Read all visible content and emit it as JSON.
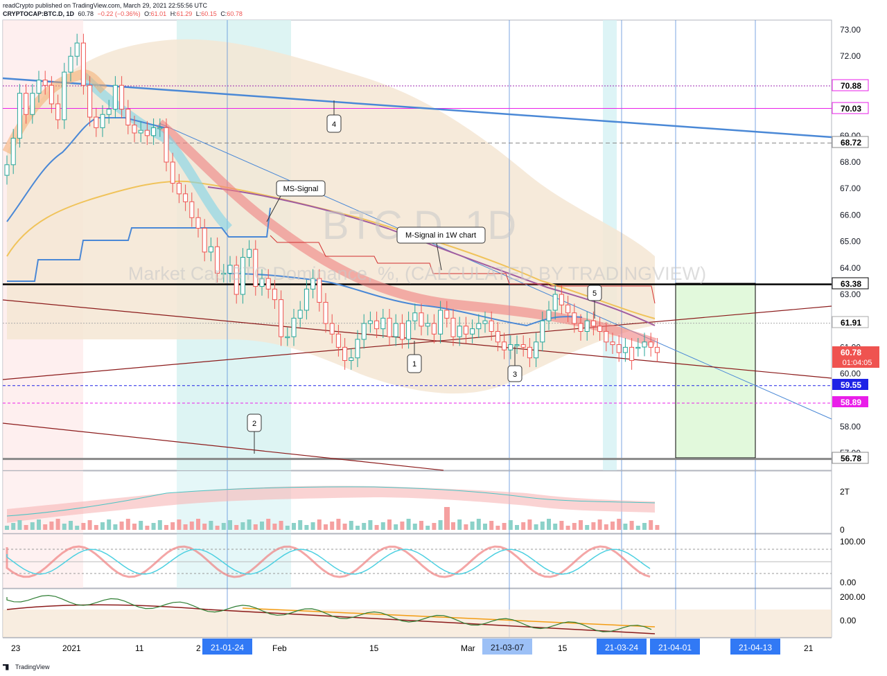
{
  "header": {
    "line1": "readCrypto published on TradingView.com, March 29, 2021 22:55:56 UTC",
    "symbol": "CRYPTOCAP:BTC.D, 1D",
    "last": "60.78",
    "change": "−0.22 (−0.36%)",
    "o": "O:",
    "o_val": "61.01",
    "h": "H:",
    "h_val": "61.29",
    "l": "L:",
    "l_val": "60.15",
    "c": "C:",
    "c_val": "60.78"
  },
  "footer": {
    "brand": "TradingView"
  },
  "watermark": {
    "symbol": "BTC.D, 1D",
    "description": "Market Cap BTC Dominance, %, (CALCULATED BY TRADINGVIEW)"
  },
  "annotations": {
    "ms_signal": "MS-Signal",
    "m_signal": "M-Signal in 1W chart",
    "n1": "1",
    "n2": "2",
    "n3": "3",
    "n4": "4",
    "n5": "5"
  },
  "price_axis": {
    "ticks": [
      "73.00",
      "72.00",
      "71.00",
      "70.00",
      "69.00",
      "68.00",
      "67.00",
      "66.00",
      "65.00",
      "64.00",
      "63.00",
      "62.00",
      "61.00",
      "60.00",
      "59.00",
      "58.00",
      "57.00"
    ],
    "labels": {
      "l7088": "70.88",
      "l7003": "70.03",
      "l6872": "68.72",
      "l6338": "63.38",
      "l6191": "61.91",
      "l6078": "60.78",
      "countdown": "01:04:05",
      "l5955": "59.55",
      "l5889": "58.89",
      "l5678": "56.78"
    }
  },
  "pane_axes": {
    "volume": [
      "2T",
      "0"
    ],
    "stoch": [
      "100.00",
      "0.00"
    ],
    "osc": [
      "200.00",
      "0.00"
    ]
  },
  "time_axis": {
    "ticks": [
      "23",
      "2021",
      "11",
      "2",
      "Feb",
      "15",
      "Mar",
      "15",
      "21"
    ],
    "highlighted": [
      "21-01-24",
      "21-03-07",
      "21-03-24",
      "21-04-01",
      "21-04-13"
    ]
  },
  "colors": {
    "up": "#26a69a",
    "down": "#ef5350",
    "blue_line": "#4a88d6",
    "level_black": "#000000",
    "level_gray": "#888888",
    "channel": "#8b1a1a",
    "green_box": "#e2f9dc",
    "bb_fill": "#f5e6d3",
    "label_blue": "#1e22e6",
    "label_magenta": "#e91ee9"
  },
  "chart_data": {
    "type": "candlestick",
    "ylabel": "",
    "ylim": [
      56.6,
      73.2
    ],
    "levels": [
      70.88,
      70.03,
      68.72,
      63.38,
      61.91,
      59.55,
      58.89,
      56.78
    ],
    "x_range": [
      "2020-12-19",
      "2021-04-25"
    ],
    "closes": [
      67.9,
      68.9,
      70.6,
      69.8,
      70.6,
      71.1,
      70.9,
      70.2,
      69.6,
      71.4,
      72.0,
      72.5,
      70.9,
      69.7,
      69.3,
      69.8,
      70.0,
      70.9,
      70.0,
      69.4,
      69.1,
      69.2,
      69.0,
      69.3,
      69.3,
      68.0,
      67.2,
      66.8,
      66.5,
      65.9,
      65.5,
      64.6,
      64.8,
      63.8,
      63.8,
      64.1,
      63.0,
      64.4,
      64.7,
      63.3,
      63.6,
      63.2,
      62.8,
      61.4,
      61.4,
      62.1,
      62.4,
      63.2,
      63.6,
      62.7,
      61.9,
      61.5,
      61.0,
      60.5,
      60.6,
      61.3,
      61.9,
      62.0,
      61.7,
      62.1,
      61.4,
      61.9,
      61.3,
      62.0,
      62.3,
      61.8,
      61.9,
      61.5,
      62.4,
      62.1,
      61.4,
      61.8,
      61.5,
      61.7,
      61.9,
      62.0,
      61.6,
      61.2,
      60.9,
      61.1,
      61.1,
      61.0,
      60.6,
      61.2,
      62.0,
      62.4,
      63.0,
      62.6,
      62.3,
      61.9,
      61.6,
      62.0,
      61.8,
      61.6,
      61.2,
      61.1,
      60.8,
      61.0,
      60.5,
      61.0,
      61.2,
      61.0,
      60.8
    ],
    "opens": [
      67.5,
      67.9,
      68.9,
      70.6,
      69.8,
      70.6,
      71.1,
      70.9,
      70.2,
      69.6,
      71.4,
      72.0,
      72.5,
      70.9,
      69.7,
      69.3,
      69.8,
      70.0,
      70.9,
      70.0,
      69.4,
      69.1,
      69.2,
      69.0,
      69.3,
      69.3,
      68.0,
      67.2,
      66.8,
      66.5,
      65.9,
      65.5,
      64.6,
      64.8,
      63.8,
      63.8,
      64.1,
      63.0,
      64.4,
      64.7,
      63.3,
      63.6,
      63.2,
      62.8,
      61.4,
      61.4,
      62.1,
      62.4,
      63.2,
      63.6,
      62.7,
      61.9,
      61.5,
      61.0,
      60.5,
      60.6,
      61.3,
      61.9,
      62.0,
      61.7,
      62.1,
      61.4,
      61.9,
      61.3,
      62.0,
      62.3,
      61.8,
      61.9,
      61.5,
      62.4,
      62.1,
      61.4,
      61.8,
      61.5,
      61.7,
      61.9,
      62.0,
      61.6,
      61.2,
      60.9,
      61.1,
      61.1,
      61.0,
      60.6,
      61.2,
      62.0,
      62.4,
      63.0,
      62.6,
      62.3,
      61.9,
      61.6,
      62.0,
      61.8,
      61.6,
      61.2,
      61.1,
      60.8,
      61.0,
      61.0,
      61.01,
      61.2,
      61.0
    ],
    "oscillators": {
      "stoch_range": [
        0,
        100
      ],
      "osc_range": [
        -50,
        200
      ]
    }
  }
}
